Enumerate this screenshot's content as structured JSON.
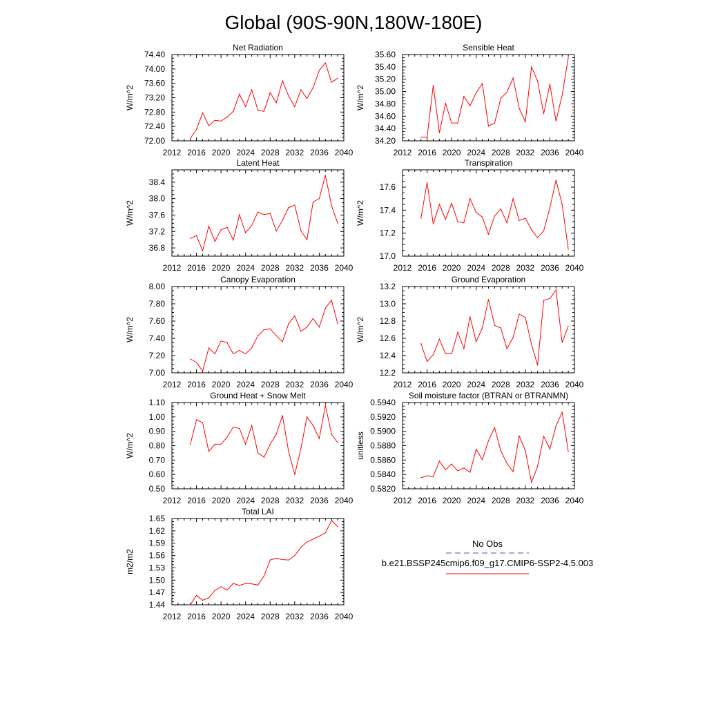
{
  "title": "Global (90S-90N,180W-180E)",
  "colors": {
    "model": "#ff0000",
    "obs": "#4b4bc8",
    "axis": "#000000"
  },
  "legend": {
    "obs_label": "No Obs",
    "model_label": "b.e21.BSSP245cmip6.f09_g17.CMIP6-SSP2-4.5.003"
  },
  "chart_data": [
    {
      "id": "net-radiation",
      "type": "line",
      "title": "Net Radiation",
      "xlabel": "",
      "ylabel": "W/m^2",
      "xlim": [
        2012,
        2040
      ],
      "ylim": [
        72.0,
        74.4
      ],
      "xticks": [
        "2012",
        "2016",
        "2020",
        "2024",
        "2028",
        "2032",
        "2036",
        "2040"
      ],
      "yticks": [
        "72.00",
        "72.40",
        "72.80",
        "73.20",
        "73.60",
        "74.00",
        "74.40"
      ],
      "x": [
        2015,
        2016,
        2017,
        2018,
        2019,
        2020,
        2021,
        2022,
        2023,
        2024,
        2025,
        2026,
        2027,
        2028,
        2029,
        2030,
        2031,
        2032,
        2033,
        2034,
        2035,
        2036,
        2037,
        2038,
        2039
      ],
      "series": [
        {
          "name": "b.e21.BSSP245cmip6.f09_g17.CMIP6-SSP2-4.5.003",
          "values": [
            72.07,
            72.32,
            72.78,
            72.42,
            72.57,
            72.55,
            72.66,
            72.82,
            73.3,
            72.95,
            73.42,
            72.85,
            72.82,
            73.34,
            73.06,
            73.67,
            73.25,
            72.95,
            73.42,
            73.18,
            73.48,
            73.96,
            74.17,
            73.63,
            73.74
          ]
        }
      ]
    },
    {
      "id": "sensible-heat",
      "type": "line",
      "title": "Sensible Heat",
      "xlabel": "",
      "ylabel": "W/m^2",
      "xlim": [
        2012,
        2040
      ],
      "ylim": [
        34.2,
        35.6
      ],
      "xticks": [
        "2012",
        "2016",
        "2020",
        "2024",
        "2028",
        "2032",
        "2036",
        "2040"
      ],
      "yticks": [
        "34.20",
        "34.40",
        "34.60",
        "34.80",
        "35.00",
        "35.20",
        "35.40",
        "35.60"
      ],
      "x": [
        2015,
        2016,
        2017,
        2018,
        2019,
        2020,
        2021,
        2022,
        2023,
        2024,
        2025,
        2026,
        2027,
        2028,
        2029,
        2030,
        2031,
        2032,
        2033,
        2034,
        2035,
        2036,
        2037,
        2038,
        2039
      ],
      "series": [
        {
          "name": "b.e21.BSSP245cmip6.f09_g17.CMIP6-SSP2-4.5.003",
          "values": [
            34.26,
            34.26,
            35.1,
            34.33,
            34.81,
            34.49,
            34.49,
            34.92,
            34.77,
            34.98,
            35.13,
            34.44,
            34.49,
            34.89,
            34.99,
            35.22,
            34.73,
            34.51,
            35.4,
            35.17,
            34.64,
            35.12,
            34.52,
            34.94,
            35.55
          ]
        }
      ]
    },
    {
      "id": "latent-heat",
      "type": "line",
      "title": "Latent Heat",
      "xlabel": "",
      "ylabel": "W/m^2",
      "xlim": [
        2012,
        2040
      ],
      "ylim": [
        36.6,
        38.7
      ],
      "xticks": [
        "2012",
        "2016",
        "2020",
        "2024",
        "2028",
        "2032",
        "2036",
        "2040"
      ],
      "yticks": [
        "36.8",
        "37.2",
        "37.6",
        "38.0",
        "38.4"
      ],
      "x": [
        2015,
        2016,
        2017,
        2018,
        2019,
        2020,
        2021,
        2022,
        2023,
        2024,
        2025,
        2026,
        2027,
        2028,
        2029,
        2030,
        2031,
        2032,
        2033,
        2034,
        2035,
        2036,
        2037,
        2038,
        2039
      ],
      "series": [
        {
          "name": "b.e21.BSSP245cmip6.f09_g17.CMIP6-SSP2-4.5.003",
          "values": [
            37.03,
            37.1,
            36.73,
            37.33,
            36.96,
            37.24,
            37.3,
            36.99,
            37.61,
            37.17,
            37.35,
            37.67,
            37.61,
            37.64,
            37.21,
            37.47,
            37.78,
            37.84,
            37.22,
            37.0,
            37.92,
            38.0,
            38.57,
            37.83,
            37.4
          ]
        }
      ]
    },
    {
      "id": "transpiration",
      "type": "line",
      "title": "Transpiration",
      "xlabel": "",
      "ylabel": "W/m^2",
      "xlim": [
        2012,
        2040
      ],
      "ylim": [
        17.0,
        17.75
      ],
      "xticks": [
        "2012",
        "2016",
        "2020",
        "2024",
        "2028",
        "2032",
        "2036",
        "2040"
      ],
      "yticks": [
        "17.0",
        "17.2",
        "17.4",
        "17.6"
      ],
      "x": [
        2015,
        2016,
        2017,
        2018,
        2019,
        2020,
        2021,
        2022,
        2023,
        2024,
        2025,
        2026,
        2027,
        2028,
        2029,
        2030,
        2031,
        2032,
        2033,
        2034,
        2035,
        2036,
        2037,
        2038,
        2039
      ],
      "series": [
        {
          "name": "b.e21.BSSP245cmip6.f09_g17.CMIP6-SSP2-4.5.003",
          "values": [
            17.33,
            17.64,
            17.28,
            17.45,
            17.32,
            17.46,
            17.3,
            17.29,
            17.5,
            17.38,
            17.34,
            17.19,
            17.35,
            17.41,
            17.29,
            17.5,
            17.31,
            17.33,
            17.23,
            17.16,
            17.22,
            17.42,
            17.66,
            17.45,
            17.06
          ]
        }
      ]
    },
    {
      "id": "canopy-evaporation",
      "type": "line",
      "title": "Canopy Evaporation",
      "xlabel": "",
      "ylabel": "W/m^2",
      "xlim": [
        2012,
        2040
      ],
      "ylim": [
        7.0,
        8.0
      ],
      "xticks": [
        "2012",
        "2016",
        "2020",
        "2024",
        "2028",
        "2032",
        "2036",
        "2040"
      ],
      "yticks": [
        "7.00",
        "7.20",
        "7.40",
        "7.60",
        "7.80",
        "8.00"
      ],
      "x": [
        2015,
        2016,
        2017,
        2018,
        2019,
        2020,
        2021,
        2022,
        2023,
        2024,
        2025,
        2026,
        2027,
        2028,
        2029,
        2030,
        2031,
        2032,
        2033,
        2034,
        2035,
        2036,
        2037,
        2038,
        2039
      ],
      "series": [
        {
          "name": "b.e21.BSSP245cmip6.f09_g17.CMIP6-SSP2-4.5.003",
          "values": [
            7.16,
            7.12,
            7.02,
            7.29,
            7.22,
            7.37,
            7.35,
            7.22,
            7.26,
            7.22,
            7.29,
            7.43,
            7.5,
            7.51,
            7.43,
            7.36,
            7.57,
            7.66,
            7.48,
            7.53,
            7.63,
            7.53,
            7.75,
            7.84,
            7.57
          ]
        }
      ]
    },
    {
      "id": "ground-evaporation",
      "type": "line",
      "title": "Ground Evaporation",
      "xlabel": "",
      "ylabel": "W/m^2",
      "xlim": [
        2012,
        2040
      ],
      "ylim": [
        12.2,
        13.2
      ],
      "xticks": [
        "2012",
        "2016",
        "2020",
        "2024",
        "2028",
        "2032",
        "2036",
        "2040"
      ],
      "yticks": [
        "12.2",
        "12.4",
        "12.6",
        "12.8",
        "13.0",
        "13.2"
      ],
      "x": [
        2015,
        2016,
        2017,
        2018,
        2019,
        2020,
        2021,
        2022,
        2023,
        2024,
        2025,
        2026,
        2027,
        2028,
        2029,
        2030,
        2031,
        2032,
        2033,
        2034,
        2035,
        2036,
        2037,
        2038,
        2039
      ],
      "series": [
        {
          "name": "b.e21.BSSP245cmip6.f09_g17.CMIP6-SSP2-4.5.003",
          "values": [
            12.54,
            12.33,
            12.41,
            12.59,
            12.42,
            12.42,
            12.67,
            12.48,
            12.85,
            12.56,
            12.72,
            13.05,
            12.75,
            12.72,
            12.48,
            12.61,
            12.88,
            12.84,
            12.53,
            12.29,
            13.04,
            13.06,
            13.16,
            12.55,
            12.74
          ]
        }
      ]
    },
    {
      "id": "ground-heat-snow-melt",
      "type": "line",
      "title": "Ground Heat + Snow Melt",
      "xlabel": "",
      "ylabel": "W/m^2",
      "xlim": [
        2012,
        2040
      ],
      "ylim": [
        0.5,
        1.1
      ],
      "xticks": [
        "2012",
        "2016",
        "2020",
        "2024",
        "2028",
        "2032",
        "2036",
        "2040"
      ],
      "yticks": [
        "0.50",
        "0.60",
        "0.70",
        "0.80",
        "0.90",
        "1.00",
        "1.10"
      ],
      "x": [
        2015,
        2016,
        2017,
        2018,
        2019,
        2020,
        2021,
        2022,
        2023,
        2024,
        2025,
        2026,
        2027,
        2028,
        2029,
        2030,
        2031,
        2032,
        2033,
        2034,
        2035,
        2036,
        2037,
        2038,
        2039
      ],
      "series": [
        {
          "name": "b.e21.BSSP245cmip6.f09_g17.CMIP6-SSP2-4.5.003",
          "values": [
            0.81,
            0.98,
            0.96,
            0.76,
            0.81,
            0.81,
            0.86,
            0.93,
            0.92,
            0.81,
            0.94,
            0.75,
            0.72,
            0.81,
            0.88,
            1.01,
            0.76,
            0.6,
            0.78,
            1.0,
            0.94,
            0.85,
            1.08,
            0.88,
            0.82
          ]
        }
      ]
    },
    {
      "id": "soil-moisture-factor",
      "type": "line",
      "title": "Soil moisture factor (BTRAN or BTRANMN)",
      "xlabel": "",
      "ylabel": "unitless",
      "xlim": [
        2012,
        2040
      ],
      "ylim": [
        0.582,
        0.594
      ],
      "xticks": [
        "2012",
        "2016",
        "2020",
        "2024",
        "2028",
        "2032",
        "2036",
        "2040"
      ],
      "yticks": [
        "0.5820",
        "0.5840",
        "0.5860",
        "0.5880",
        "0.5900",
        "0.5920",
        "0.5940"
      ],
      "x": [
        2015,
        2016,
        2017,
        2018,
        2019,
        2020,
        2021,
        2022,
        2023,
        2024,
        2025,
        2026,
        2027,
        2028,
        2029,
        2030,
        2031,
        2032,
        2033,
        2034,
        2035,
        2036,
        2037,
        2038,
        2039
      ],
      "series": [
        {
          "name": "b.e21.BSSP245cmip6.f09_g17.CMIP6-SSP2-4.5.003",
          "values": [
            0.58355,
            0.5838,
            0.5837,
            0.58585,
            0.58465,
            0.58545,
            0.5845,
            0.5849,
            0.5843,
            0.5875,
            0.58605,
            0.5887,
            0.5905,
            0.5873,
            0.58555,
            0.5844,
            0.58935,
            0.5873,
            0.5829,
            0.5851,
            0.5893,
            0.58755,
            0.59075,
            0.59265,
            0.5872
          ]
        }
      ]
    },
    {
      "id": "total-lai",
      "type": "line",
      "title": "Total LAI",
      "xlabel": "",
      "ylabel": "m2/m2",
      "xlim": [
        2012,
        2040
      ],
      "ylim": [
        1.44,
        1.65
      ],
      "xticks": [
        "2012",
        "2016",
        "2020",
        "2024",
        "2028",
        "2032",
        "2036",
        "2040"
      ],
      "yticks": [
        "1.44",
        "1.47",
        "1.50",
        "1.53",
        "1.56",
        "1.59",
        "1.62",
        "1.65"
      ],
      "x": [
        2015,
        2016,
        2017,
        2018,
        2019,
        2020,
        2021,
        2022,
        2023,
        2024,
        2025,
        2026,
        2027,
        2028,
        2029,
        2030,
        2031,
        2032,
        2033,
        2034,
        2035,
        2036,
        2037,
        2038,
        2039
      ],
      "series": [
        {
          "name": "b.e21.BSSP245cmip6.f09_g17.CMIP6-SSP2-4.5.003",
          "values": [
            1.44,
            1.463,
            1.451,
            1.457,
            1.475,
            1.484,
            1.476,
            1.492,
            1.487,
            1.492,
            1.491,
            1.488,
            1.51,
            1.549,
            1.553,
            1.55,
            1.549,
            1.56,
            1.58,
            1.593,
            1.6,
            1.607,
            1.615,
            1.645,
            1.63
          ]
        }
      ]
    }
  ]
}
